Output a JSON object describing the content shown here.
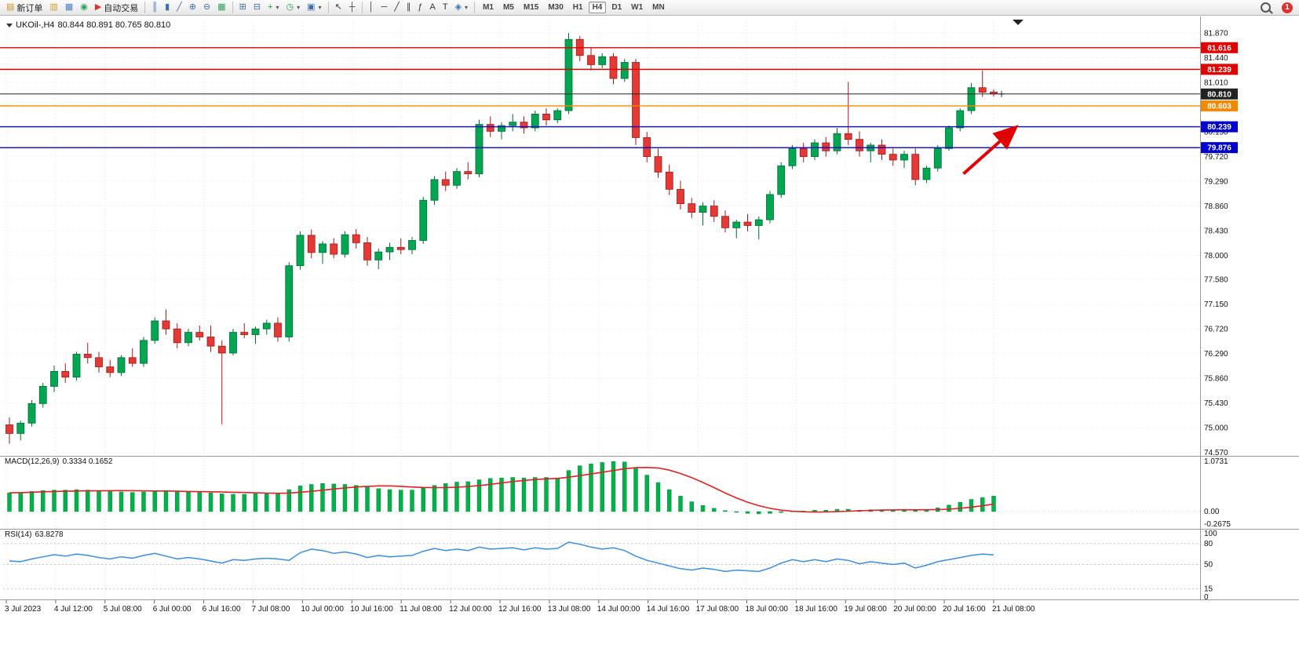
{
  "toolbar": {
    "notification_count": "1",
    "timeframes": [
      "M1",
      "M5",
      "M15",
      "M30",
      "H1",
      "H4",
      "D1",
      "W1",
      "MN"
    ],
    "active_timeframe": "H4",
    "buttons": [
      {
        "name": "new-order-button",
        "icon": "new-order-icon",
        "glyph": "▤",
        "color": "#c8932c",
        "label": "新订单"
      },
      {
        "name": "chart-window-button",
        "icon": "chart-window-icon",
        "glyph": "▥",
        "color": "#c9a227"
      },
      {
        "name": "market-watch-button",
        "icon": "market-watch-icon",
        "glyph": "▦",
        "color": "#4a7ebb"
      },
      {
        "name": "data-window-button",
        "icon": "data-window-icon",
        "glyph": "◉",
        "color": "#2fa05c"
      },
      {
        "name": "auto-trading-button",
        "icon": "auto-trading-icon",
        "glyph": "▶",
        "color": "#d23b2f",
        "label": "自动交易"
      },
      {
        "sep": true
      },
      {
        "name": "bar-chart-button",
        "icon": "bar-chart-icon",
        "glyph": "║",
        "color": "#3f6fa8"
      },
      {
        "name": "candlestick-button",
        "icon": "candlestick-icon",
        "glyph": "▮",
        "color": "#3f6fa8"
      },
      {
        "name": "line-chart-button",
        "icon": "line-chart-icon",
        "glyph": "╱",
        "color": "#3f6fa8"
      },
      {
        "name": "zoom-in-button",
        "icon": "zoom-in-icon",
        "glyph": "⊕",
        "color": "#3f6fa8"
      },
      {
        "name": "zoom-out-button",
        "icon": "zoom-out-icon",
        "glyph": "⊖",
        "color": "#3f6fa8"
      },
      {
        "name": "tile-windows-button",
        "icon": "tile-windows-icon",
        "glyph": "▦",
        "color": "#2fa05c"
      },
      {
        "sep": true
      },
      {
        "name": "arrange-charts-button",
        "icon": "arrange-charts-icon",
        "glyph": "⊞",
        "color": "#3f6fa8"
      },
      {
        "name": "cascade-charts-button",
        "icon": "cascade-charts-icon",
        "glyph": "⊟",
        "color": "#3f6fa8"
      },
      {
        "name": "add-indicator-button",
        "icon": "add-indicator-icon",
        "glyph": "+",
        "color": "#1f9e4a",
        "caret": true
      },
      {
        "name": "periods-button",
        "icon": "periods-icon",
        "glyph": "◷",
        "color": "#1f9e4a",
        "caret": true
      },
      {
        "name": "templates-button",
        "icon": "templates-icon",
        "glyph": "▣",
        "color": "#3f6fa8",
        "caret": true
      },
      {
        "sep": true
      },
      {
        "name": "cursor-button",
        "icon": "cursor-icon",
        "glyph": "↖",
        "color": "#333333"
      },
      {
        "name": "crosshair-button",
        "icon": "crosshair-icon",
        "glyph": "┼",
        "color": "#333333"
      },
      {
        "sep": true
      },
      {
        "name": "vertical-line-button",
        "icon": "vertical-line-icon",
        "glyph": "│",
        "color": "#333333"
      },
      {
        "name": "horizontal-line-button",
        "icon": "horizontal-line-icon",
        "glyph": "─",
        "color": "#333333"
      },
      {
        "name": "trendline-button",
        "icon": "trendline-icon",
        "glyph": "╱",
        "color": "#333333"
      },
      {
        "name": "channel-button",
        "icon": "channel-icon",
        "glyph": "∥",
        "color": "#333333"
      },
      {
        "name": "fibonacci-button",
        "icon": "fibonacci-icon",
        "glyph": "ƒ",
        "color": "#333333"
      },
      {
        "name": "text-button",
        "icon": "text-icon",
        "glyph": "A",
        "color": "#333333"
      },
      {
        "name": "text-label-button",
        "icon": "text-label-icon",
        "glyph": "T",
        "color": "#333333"
      },
      {
        "name": "shapes-button",
        "icon": "shapes-icon",
        "glyph": "◈",
        "color": "#3f6fa8",
        "caret": true
      },
      {
        "sep": true
      }
    ]
  },
  "chart": {
    "symbol_period": "UKOil-,H4",
    "ohlc_text": "80.844 80.891 80.765 80.810"
  },
  "indicators": {
    "macd_label": "MACD(12,26,9)",
    "macd_values": "0.3334 0.1652",
    "rsi_label": "RSI(14)",
    "rsi_value": "63.8278"
  },
  "chart_data": {
    "type": "candlestick",
    "symbol": "UKOil-",
    "timeframe": "H4",
    "current": {
      "open": 80.844,
      "high": 80.891,
      "low": 80.765,
      "close": 80.81
    },
    "up_color": "#00a651",
    "down_color": "#e53935",
    "price_axis_labels": [
      "81.870",
      "81.440",
      "81.010",
      "80.580",
      "80.150",
      "79.720",
      "79.290",
      "78.860",
      "78.430",
      "78.000",
      "77.580",
      "77.150",
      "76.720",
      "76.290",
      "75.860",
      "75.430",
      "75.000",
      "74.570"
    ],
    "price_range": {
      "max": 82.05,
      "min": 74.51
    },
    "time_labels": [
      "3 Jul 2023",
      "4 Jul 12:00",
      "5 Jul 08:00",
      "6 Jul 00:00",
      "6 Jul 16:00",
      "7 Jul 08:00",
      "10 Jul 00:00",
      "10 Jul 16:00",
      "11 Jul 08:00",
      "12 Jul 00:00",
      "12 Jul 16:00",
      "13 Jul 08:00",
      "14 Jul 00:00",
      "14 Jul 16:00",
      "17 Jul 08:00",
      "18 Jul 00:00",
      "18 Jul 16:00",
      "19 Jul 08:00",
      "20 Jul 00:00",
      "20 Jul 16:00",
      "21 Jul 08:00"
    ],
    "candles": [
      [
        75.05,
        75.18,
        74.72,
        74.9
      ],
      [
        74.9,
        75.12,
        74.78,
        75.08
      ],
      [
        75.08,
        75.48,
        75.02,
        75.42
      ],
      [
        75.42,
        75.78,
        75.35,
        75.72
      ],
      [
        75.72,
        76.08,
        75.62,
        75.98
      ],
      [
        75.98,
        76.12,
        75.78,
        75.88
      ],
      [
        75.88,
        76.32,
        75.82,
        76.28
      ],
      [
        76.28,
        76.48,
        76.12,
        76.22
      ],
      [
        76.22,
        76.32,
        75.96,
        76.06
      ],
      [
        76.06,
        76.18,
        75.88,
        75.96
      ],
      [
        75.96,
        76.26,
        75.9,
        76.22
      ],
      [
        76.22,
        76.38,
        76.06,
        76.12
      ],
      [
        76.12,
        76.58,
        76.06,
        76.52
      ],
      [
        76.52,
        76.92,
        76.46,
        76.86
      ],
      [
        76.86,
        77.06,
        76.62,
        76.72
      ],
      [
        76.72,
        76.82,
        76.38,
        76.48
      ],
      [
        76.48,
        76.72,
        76.42,
        76.66
      ],
      [
        76.66,
        76.78,
        76.52,
        76.58
      ],
      [
        76.58,
        76.78,
        76.32,
        76.42
      ],
      [
        76.42,
        76.52,
        75.06,
        76.3
      ],
      [
        76.3,
        76.72,
        76.26,
        76.66
      ],
      [
        76.66,
        76.82,
        76.56,
        76.62
      ],
      [
        76.62,
        76.76,
        76.46,
        76.72
      ],
      [
        76.72,
        76.88,
        76.62,
        76.82
      ],
      [
        76.82,
        76.92,
        76.5,
        76.58
      ],
      [
        76.58,
        77.88,
        76.5,
        77.82
      ],
      [
        77.82,
        78.42,
        77.75,
        78.35
      ],
      [
        78.35,
        78.45,
        77.95,
        78.05
      ],
      [
        78.05,
        78.25,
        77.85,
        78.2
      ],
      [
        78.2,
        78.3,
        77.95,
        78.02
      ],
      [
        78.02,
        78.42,
        77.96,
        78.36
      ],
      [
        78.36,
        78.46,
        78.12,
        78.22
      ],
      [
        78.22,
        78.32,
        77.82,
        77.92
      ],
      [
        77.92,
        78.12,
        77.76,
        78.06
      ],
      [
        78.06,
        78.22,
        77.92,
        78.14
      ],
      [
        78.14,
        78.3,
        78.02,
        78.1
      ],
      [
        78.1,
        78.32,
        78.02,
        78.26
      ],
      [
        78.26,
        79.02,
        78.2,
        78.96
      ],
      [
        78.96,
        79.38,
        78.88,
        79.32
      ],
      [
        79.32,
        79.46,
        79.12,
        79.22
      ],
      [
        79.22,
        79.52,
        79.16,
        79.46
      ],
      [
        79.46,
        79.62,
        79.32,
        79.42
      ],
      [
        79.42,
        80.36,
        79.36,
        80.28
      ],
      [
        80.28,
        80.42,
        80.06,
        80.16
      ],
      [
        80.16,
        80.32,
        80.02,
        80.26
      ],
      [
        80.26,
        80.46,
        80.16,
        80.32
      ],
      [
        80.32,
        80.42,
        80.12,
        80.22
      ],
      [
        80.22,
        80.52,
        80.16,
        80.46
      ],
      [
        80.46,
        80.56,
        80.26,
        80.36
      ],
      [
        80.36,
        80.56,
        80.3,
        80.52
      ],
      [
        80.52,
        81.87,
        80.46,
        81.76
      ],
      [
        81.76,
        81.82,
        81.38,
        81.48
      ],
      [
        81.48,
        81.62,
        81.22,
        81.32
      ],
      [
        81.32,
        81.52,
        81.26,
        81.46
      ],
      [
        81.46,
        81.52,
        80.98,
        81.08
      ],
      [
        81.08,
        81.42,
        81.02,
        81.36
      ],
      [
        81.36,
        81.42,
        79.92,
        80.05
      ],
      [
        80.05,
        80.15,
        79.62,
        79.72
      ],
      [
        79.72,
        79.86,
        79.35,
        79.45
      ],
      [
        79.45,
        79.58,
        79.05,
        79.15
      ],
      [
        79.15,
        79.3,
        78.8,
        78.9
      ],
      [
        78.9,
        79.0,
        78.65,
        78.75
      ],
      [
        78.75,
        78.92,
        78.52,
        78.86
      ],
      [
        78.86,
        78.96,
        78.58,
        78.68
      ],
      [
        78.68,
        78.78,
        78.4,
        78.48
      ],
      [
        78.48,
        78.62,
        78.3,
        78.58
      ],
      [
        78.58,
        78.72,
        78.42,
        78.52
      ],
      [
        78.52,
        78.68,
        78.28,
        78.62
      ],
      [
        78.62,
        79.12,
        78.56,
        79.06
      ],
      [
        79.06,
        79.62,
        79.0,
        79.56
      ],
      [
        79.56,
        79.92,
        79.5,
        79.86
      ],
      [
        79.86,
        79.96,
        79.62,
        79.72
      ],
      [
        79.72,
        80.02,
        79.66,
        79.96
      ],
      [
        79.96,
        80.06,
        79.72,
        79.82
      ],
      [
        79.82,
        80.22,
        79.76,
        80.12
      ],
      [
        80.12,
        81.02,
        79.92,
        80.02
      ],
      [
        80.02,
        80.16,
        79.72,
        79.82
      ],
      [
        79.82,
        79.96,
        79.62,
        79.92
      ],
      [
        79.92,
        80.02,
        79.66,
        79.76
      ],
      [
        79.76,
        79.86,
        79.56,
        79.66
      ],
      [
        79.66,
        79.82,
        79.52,
        79.76
      ],
      [
        79.76,
        79.86,
        79.22,
        79.32
      ],
      [
        79.32,
        79.56,
        79.26,
        79.52
      ],
      [
        79.52,
        79.92,
        79.46,
        79.86
      ],
      [
        79.86,
        80.26,
        79.82,
        80.22
      ],
      [
        80.22,
        80.56,
        80.16,
        80.52
      ],
      [
        80.52,
        81.0,
        80.46,
        80.92
      ],
      [
        80.92,
        81.22,
        80.76,
        80.84
      ],
      [
        80.844,
        80.891,
        80.765,
        80.81
      ]
    ],
    "levels": [
      {
        "price": 81.616,
        "label": "81.616",
        "color": "#e10000",
        "type": "resistance-line"
      },
      {
        "price": 81.239,
        "label": "81.239",
        "color": "#e10000",
        "type": "resistance-line"
      },
      {
        "price": 80.81,
        "label": "80.810",
        "color": "#222222",
        "type": "bid-price-line"
      },
      {
        "price": 80.603,
        "label": "80.603",
        "color": "#ef8a00",
        "type": "pivot-line"
      },
      {
        "price": 80.239,
        "label": "80.239",
        "color": "#0000cc",
        "type": "support-line"
      },
      {
        "price": 79.876,
        "label": "79.876",
        "color": "#0000cc",
        "type": "support-line"
      }
    ],
    "macd": {
      "params": "12,26,9",
      "axis_labels": [
        "1.0731",
        "0.00",
        "-0.2675"
      ],
      "max": 1.0731,
      "min": -0.2675,
      "hist_color": "#00b14a",
      "signal_color": "#dd2222",
      "histogram": [
        0.4,
        0.41,
        0.43,
        0.45,
        0.46,
        0.46,
        0.47,
        0.46,
        0.45,
        0.43,
        0.42,
        0.41,
        0.42,
        0.44,
        0.45,
        0.43,
        0.42,
        0.41,
        0.4,
        0.38,
        0.37,
        0.37,
        0.38,
        0.39,
        0.4,
        0.47,
        0.55,
        0.58,
        0.6,
        0.59,
        0.58,
        0.56,
        0.52,
        0.49,
        0.47,
        0.46,
        0.46,
        0.5,
        0.56,
        0.6,
        0.63,
        0.64,
        0.68,
        0.71,
        0.72,
        0.73,
        0.72,
        0.73,
        0.73,
        0.72,
        0.88,
        0.98,
        1.02,
        1.05,
        1.07,
        1.06,
        0.93,
        0.78,
        0.62,
        0.47,
        0.33,
        0.21,
        0.13,
        0.07,
        0.02,
        -0.01,
        -0.04,
        -0.05,
        -0.04,
        -0.02,
        0.01,
        0.01,
        0.03,
        0.03,
        0.05,
        0.05,
        0.03,
        0.04,
        0.04,
        0.03,
        0.04,
        0.02,
        0.04,
        0.08,
        0.14,
        0.2,
        0.26,
        0.3,
        0.3334
      ]
    },
    "rsi": {
      "period": 14,
      "color": "#3c8ddc",
      "axis_labels": [
        "100",
        "80",
        "50",
        "15",
        "0"
      ],
      "level_lines": [
        80,
        50,
        15
      ],
      "last": 63.8278,
      "values": [
        55,
        54,
        58,
        61,
        64,
        62,
        65,
        63,
        60,
        58,
        61,
        59,
        63,
        66,
        62,
        58,
        60,
        58,
        55,
        52,
        57,
        56,
        58,
        59,
        58,
        56,
        67,
        72,
        70,
        66,
        68,
        65,
        60,
        63,
        61,
        62,
        63,
        69,
        73,
        70,
        72,
        70,
        75,
        72,
        73,
        74,
        71,
        74,
        72,
        73,
        82,
        79,
        75,
        72,
        74,
        70,
        62,
        56,
        52,
        48,
        44,
        42,
        45,
        43,
        40,
        42,
        41,
        40,
        45,
        52,
        57,
        54,
        57,
        54,
        58,
        56,
        51,
        54,
        52,
        50,
        52,
        45,
        49,
        54,
        57,
        60,
        63,
        65,
        63.83
      ]
    },
    "annotation_arrow": {
      "color": "#e10000",
      "from": {
        "index": 85.3,
        "price": 79.42
      },
      "to": {
        "index": 89.8,
        "price": 80.2
      }
    }
  }
}
